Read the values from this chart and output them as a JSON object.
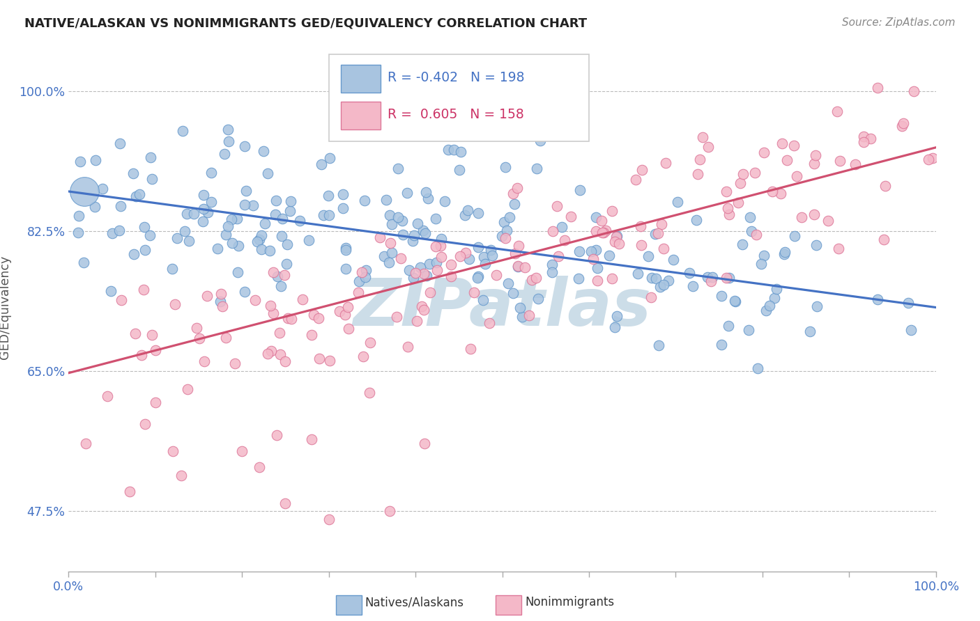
{
  "title": "NATIVE/ALASKAN VS NONIMMIGRANTS GED/EQUIVALENCY CORRELATION CHART",
  "source": "Source: ZipAtlas.com",
  "ylabel": "GED/Equivalency",
  "xlim": [
    0.0,
    1.0
  ],
  "ylim": [
    0.4,
    1.06
  ],
  "ytick_vals": [
    0.475,
    0.65,
    0.825,
    1.0
  ],
  "ytick_labels": [
    "47.5%",
    "65.0%",
    "82.5%",
    "100.0%"
  ],
  "blue_R": -0.402,
  "blue_N": 198,
  "pink_R": 0.605,
  "pink_N": 158,
  "blue_scatter_color": "#a8c4e0",
  "blue_scatter_edge": "#6699cc",
  "pink_scatter_color": "#f4b8c8",
  "pink_scatter_edge": "#dd7799",
  "blue_line_color": "#4472c4",
  "pink_line_color": "#d05070",
  "legend_blue_text_color": "#4472c4",
  "legend_pink_text_color": "#cc3366",
  "axis_label_color": "#4472c4",
  "watermark_color": "#ccdde8",
  "background_color": "#ffffff",
  "grid_color": "#bbbbbb",
  "title_color": "#222222",
  "source_color": "#888888",
  "blue_line_start_y": 0.875,
  "blue_line_end_y": 0.73,
  "pink_line_start_y": 0.648,
  "pink_line_end_y": 0.93,
  "bottom_legend_label1": "Natives/Alaskans",
  "bottom_legend_label2": "Nonimmigrants"
}
